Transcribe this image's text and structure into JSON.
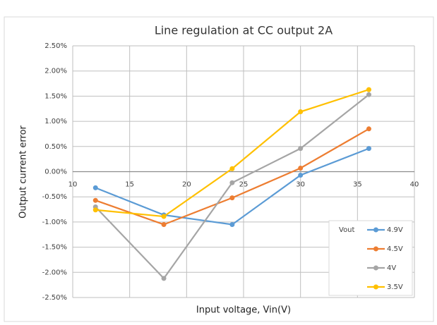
{
  "chart_data": {
    "type": "line",
    "title": "Line regulation at CC output 2A",
    "x_label": "Input voltage, Vin(V)",
    "y_label": "Output current error",
    "x": [
      12,
      18,
      24,
      30,
      36
    ],
    "series": [
      {
        "name": "4.9V",
        "color": "#5b9bd5",
        "values": [
          -0.32,
          -0.86,
          -1.05,
          -0.07,
          0.46
        ]
      },
      {
        "name": "4.5V",
        "color": "#ed7d31",
        "values": [
          -0.57,
          -1.05,
          -0.52,
          0.07,
          0.85
        ]
      },
      {
        "name": "4V",
        "color": "#a5a5a5",
        "values": [
          -0.7,
          -2.12,
          -0.22,
          0.46,
          1.53
        ]
      },
      {
        "name": "3.5V",
        "color": "#ffc000",
        "values": [
          -0.76,
          -0.89,
          0.06,
          1.19,
          1.63
        ]
      }
    ],
    "legend_title": "Vout",
    "legend": "lower right",
    "xlim": [
      10,
      40
    ],
    "xticks": [
      10,
      15,
      20,
      25,
      30,
      35,
      40
    ],
    "ylim": [
      -2.5,
      2.5
    ],
    "yticks": [
      {
        "value": -2.5,
        "label": "-2.50%"
      },
      {
        "value": -2.0,
        "label": "-2.00%"
      },
      {
        "value": -1.5,
        "label": "-1.50%"
      },
      {
        "value": -1.0,
        "label": "-1.00%"
      },
      {
        "value": -0.5,
        "label": "-0.50%"
      },
      {
        "value": 0,
        "label": "0.00%"
      },
      {
        "value": 0.5,
        "label": "0.50%"
      },
      {
        "value": 1.0,
        "label": "1.00%"
      },
      {
        "value": 1.5,
        "label": "1.50%"
      },
      {
        "value": 2.0,
        "label": "2.00%"
      },
      {
        "value": 2.5,
        "label": "2.50%"
      }
    ],
    "grid": true
  }
}
